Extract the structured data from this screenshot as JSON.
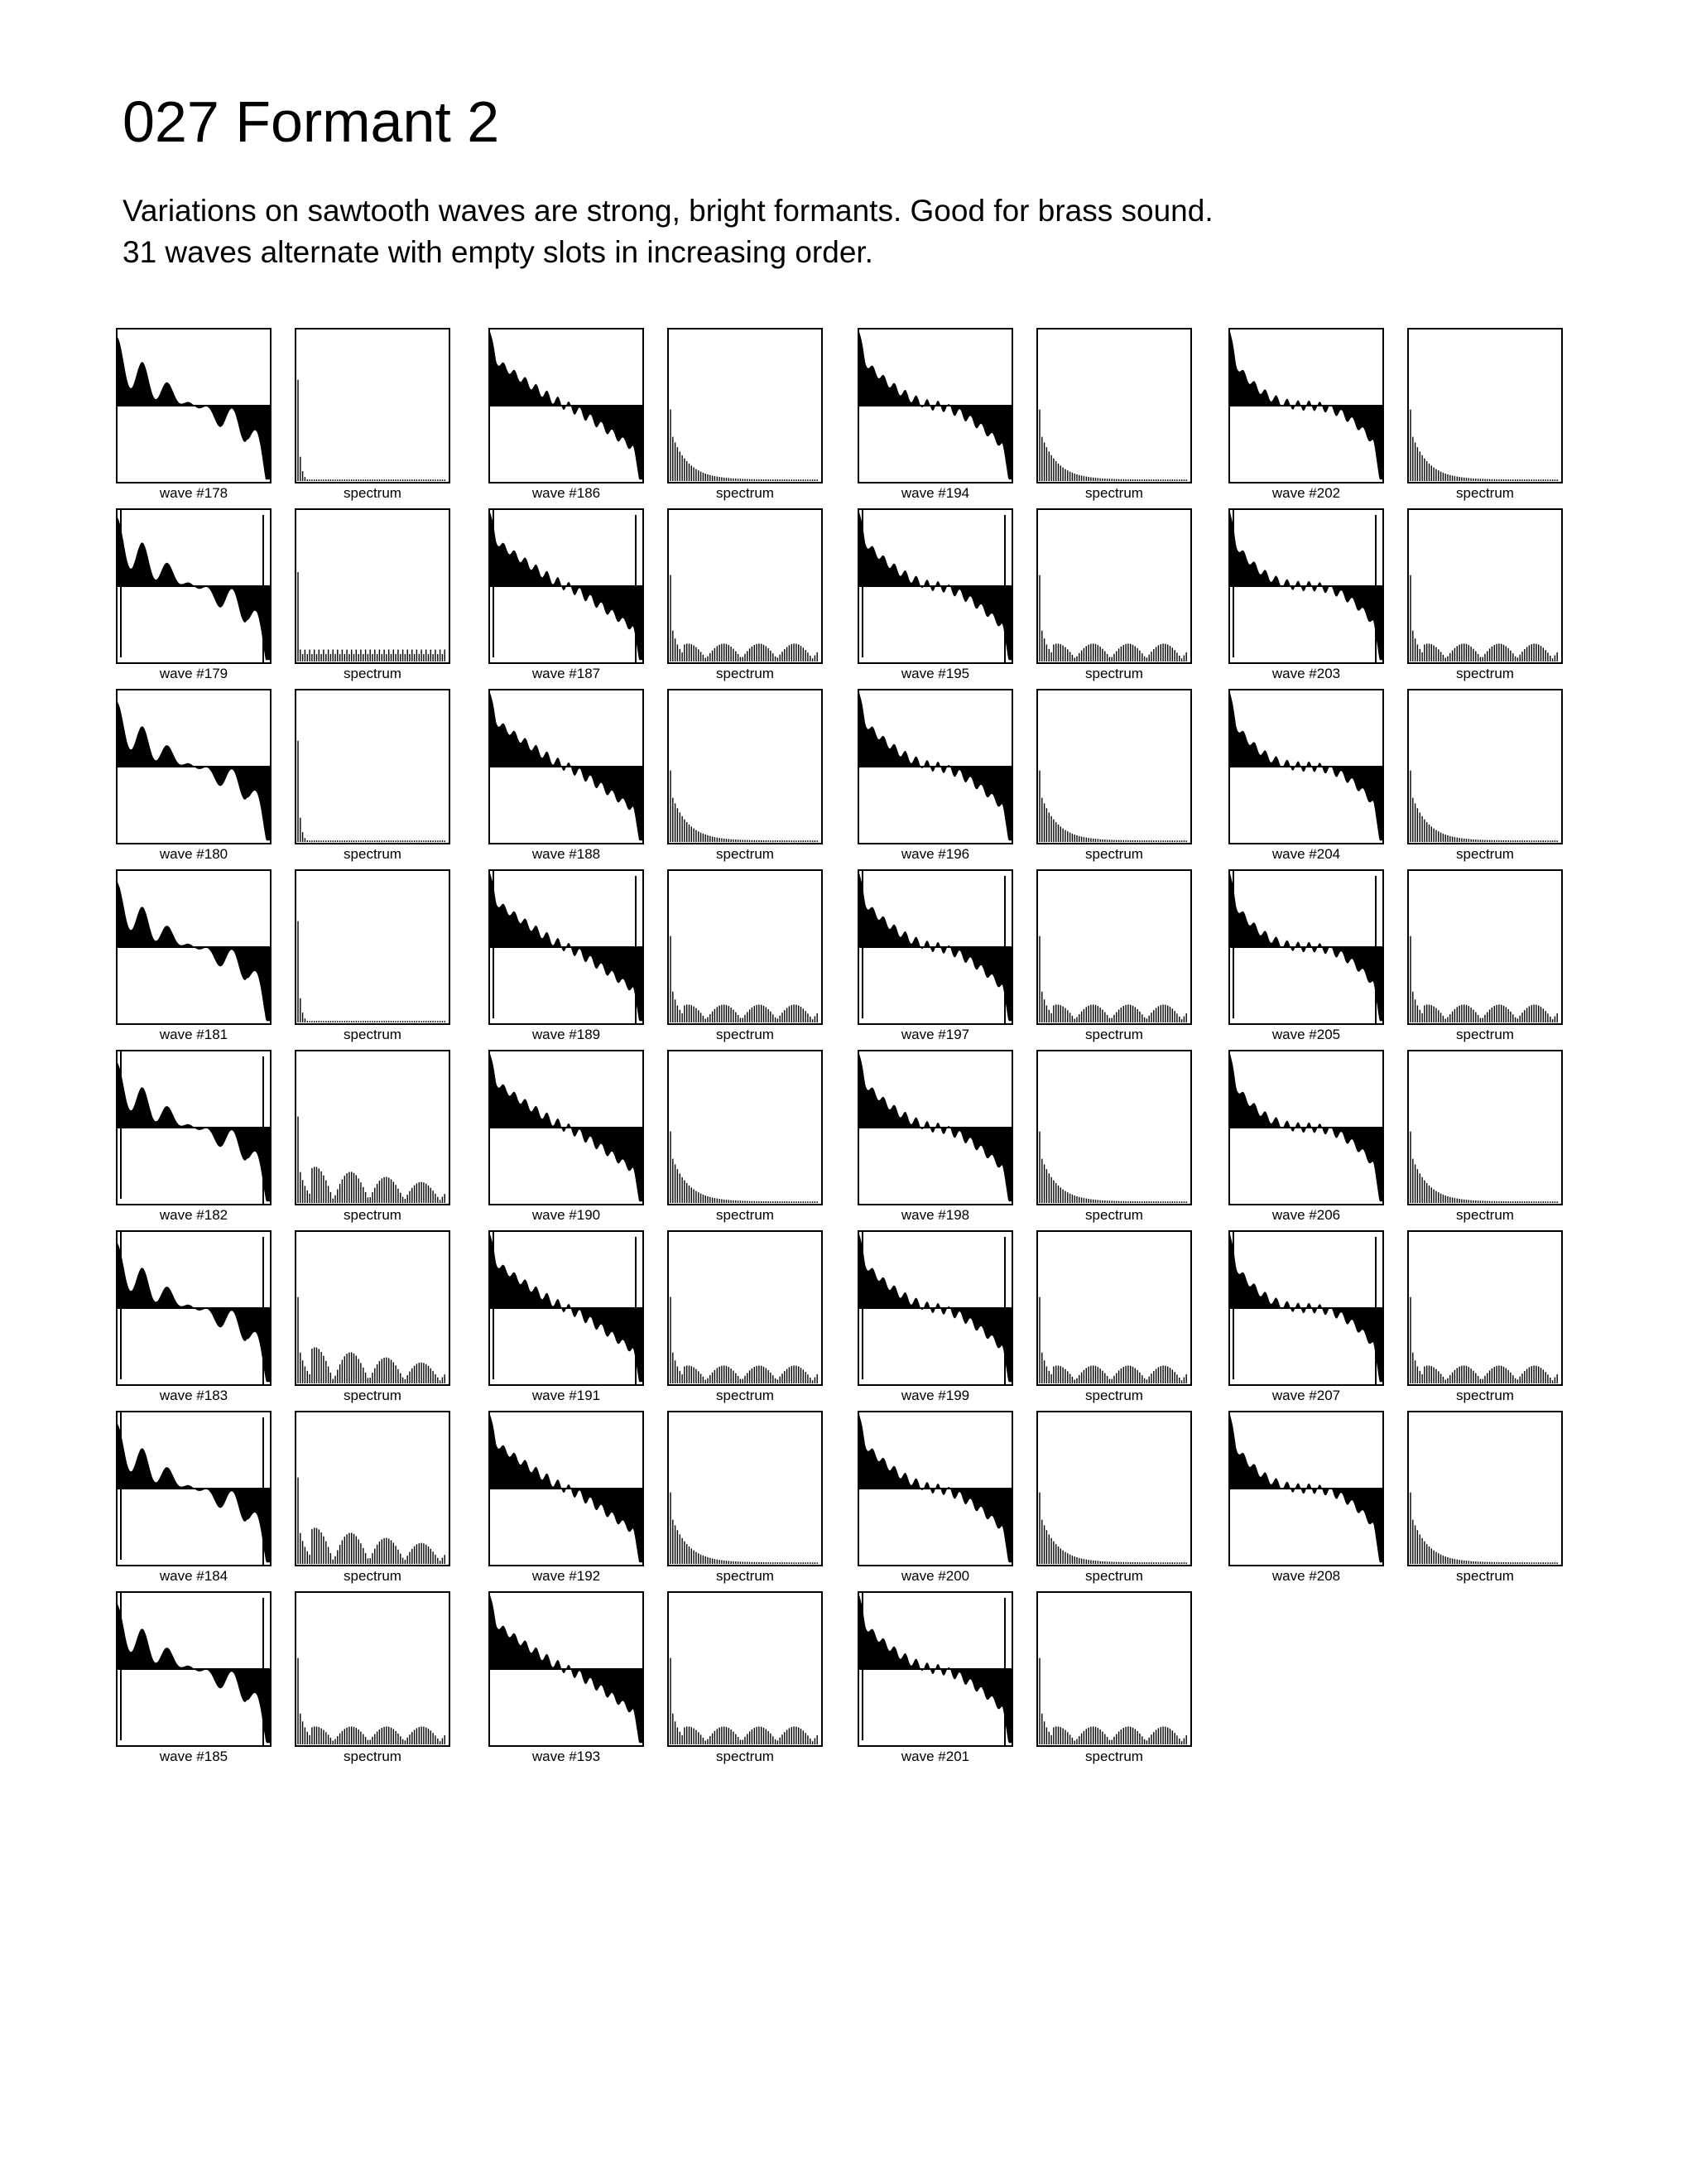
{
  "title": "027 Formant 2",
  "description": [
    "Variations on sawtooth waves are strong, bright formants. Good for brass sound.",
    "31 waves alternate with empty slots in increasing order."
  ],
  "spectrum_label": "spectrum",
  "waves": [
    {
      "label": "wave #178",
      "shape": "smooth-3",
      "spectrum": "sparse"
    },
    {
      "label": "wave #179",
      "shape": "smooth-spike-3",
      "spectrum": "flat"
    },
    {
      "label": "wave #180",
      "shape": "smooth-2",
      "spectrum": "sparse"
    },
    {
      "label": "wave #181",
      "shape": "smooth-2",
      "spectrum": "sparse"
    },
    {
      "label": "wave #182",
      "shape": "smooth-spike-2",
      "spectrum": "humps-big"
    },
    {
      "label": "wave #183",
      "shape": "smooth-spike-1",
      "spectrum": "humps-big"
    },
    {
      "label": "wave #184",
      "shape": "smooth-spike-1",
      "spectrum": "humps-big"
    },
    {
      "label": "wave #185",
      "shape": "smooth-spike-1",
      "spectrum": "humps"
    },
    {
      "label": "wave #186",
      "shape": "saw-1",
      "spectrum": "decay"
    },
    {
      "label": "wave #187",
      "shape": "saw-spike-1",
      "spectrum": "humps"
    },
    {
      "label": "wave #188",
      "shape": "saw-1",
      "spectrum": "decay"
    },
    {
      "label": "wave #189",
      "shape": "saw-spike-1",
      "spectrum": "humps"
    },
    {
      "label": "wave #190",
      "shape": "saw-1",
      "spectrum": "decay"
    },
    {
      "label": "wave #191",
      "shape": "saw-spike-1",
      "spectrum": "humps"
    },
    {
      "label": "wave #192",
      "shape": "saw-1",
      "spectrum": "decay"
    },
    {
      "label": "wave #193",
      "shape": "saw-1",
      "spectrum": "humps"
    },
    {
      "label": "wave #194",
      "shape": "saw-2",
      "spectrum": "decay"
    },
    {
      "label": "wave #195",
      "shape": "saw-spike-2",
      "spectrum": "humps"
    },
    {
      "label": "wave #196",
      "shape": "saw-2",
      "spectrum": "decay"
    },
    {
      "label": "wave #197",
      "shape": "saw-spike-2",
      "spectrum": "humps"
    },
    {
      "label": "wave #198",
      "shape": "saw-2",
      "spectrum": "decay"
    },
    {
      "label": "wave #199",
      "shape": "saw-spike-2",
      "spectrum": "humps"
    },
    {
      "label": "wave #200",
      "shape": "saw-2",
      "spectrum": "decay"
    },
    {
      "label": "wave #201",
      "shape": "saw-spike-2",
      "spectrum": "humps"
    },
    {
      "label": "wave #202",
      "shape": "saw-3",
      "spectrum": "decay"
    },
    {
      "label": "wave #203",
      "shape": "saw-spike-3",
      "spectrum": "humps"
    },
    {
      "label": "wave #204",
      "shape": "saw-3",
      "spectrum": "decay"
    },
    {
      "label": "wave #205",
      "shape": "saw-spike-3",
      "spectrum": "humps"
    },
    {
      "label": "wave #206",
      "shape": "saw-3",
      "spectrum": "decay"
    },
    {
      "label": "wave #207",
      "shape": "saw-spike-3",
      "spectrum": "humps"
    },
    {
      "label": "wave #208",
      "shape": "saw-3",
      "spectrum": "decay"
    }
  ]
}
